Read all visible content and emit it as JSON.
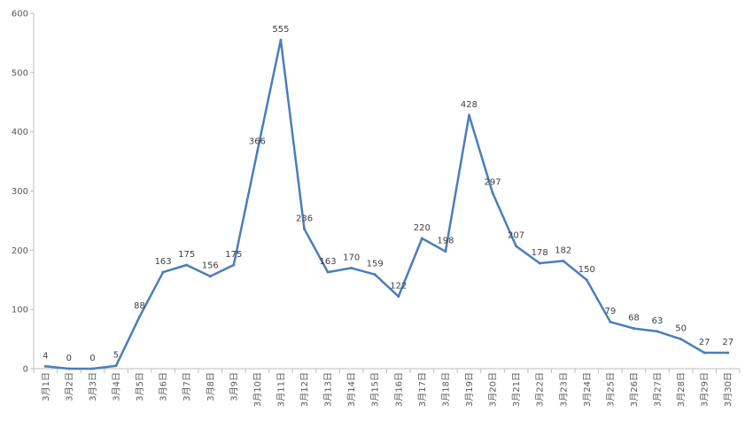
{
  "chart_data": {
    "type": "line",
    "title": "",
    "xlabel": "",
    "ylabel": "",
    "ylim": [
      0,
      600
    ],
    "yticks": [
      0,
      100,
      200,
      300,
      400,
      500,
      600
    ],
    "grid": false,
    "legend": "none",
    "categories": [
      "3月1日",
      "3月2日",
      "3月3日",
      "3月4日",
      "3月5日",
      "3月6日",
      "3月7日",
      "3月8日",
      "3月9日",
      "3月10日",
      "3月11日",
      "3月12日",
      "3月13日",
      "3月14日",
      "3月15日",
      "3月16日",
      "3月17日",
      "3月18日",
      "3月19日",
      "3月20日",
      "3月21日",
      "3月22日",
      "3月23日",
      "3月24日",
      "3月25日",
      "3月26日",
      "3月27日",
      "3月28日",
      "3月29日",
      "3月30日"
    ],
    "series": [
      {
        "color": "#4a7ebb",
        "values": [
          4,
          0,
          0,
          5,
          88,
          163,
          175,
          156,
          175,
          366,
          555,
          236,
          163,
          170,
          159,
          122,
          220,
          198,
          428,
          297,
          207,
          178,
          182,
          150,
          79,
          68,
          63,
          50,
          27,
          27
        ]
      }
    ]
  }
}
